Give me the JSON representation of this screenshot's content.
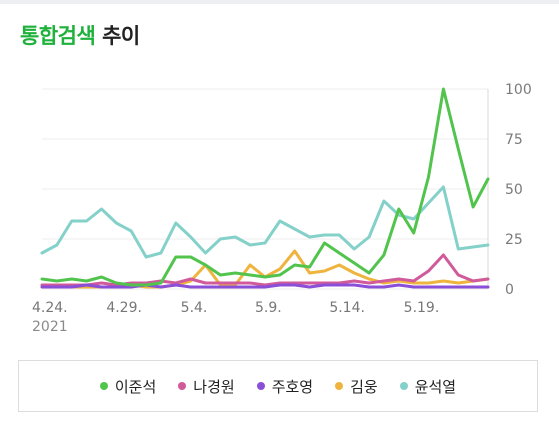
{
  "header": {
    "title_accent": "통합검색",
    "title_rest": "추이"
  },
  "chart_data": {
    "type": "line",
    "title": "통합검색 추이",
    "xlabel": "",
    "ylabel": "",
    "ylim": [
      0,
      100
    ],
    "yticks": [
      "0",
      "25",
      "50",
      "75",
      "100"
    ],
    "xticks": [
      "4.24.",
      "4.29.",
      "5.4.",
      "5.9.",
      "5.14.",
      "5.19."
    ],
    "year_label": "2021",
    "grid": true,
    "legend_position": "bottom",
    "x": [
      "4.24.",
      "4.25.",
      "4.26.",
      "4.27.",
      "4.28.",
      "4.29.",
      "4.30.",
      "5.1.",
      "5.2.",
      "5.3.",
      "5.4.",
      "5.5.",
      "5.6.",
      "5.7.",
      "5.8.",
      "5.9.",
      "5.10.",
      "5.11.",
      "5.12.",
      "5.13.",
      "5.14.",
      "5.15.",
      "5.16.",
      "5.17.",
      "5.18.",
      "5.19.",
      "5.20.",
      "5.21.",
      "5.22.",
      "5.23.",
      "5.24."
    ],
    "series": [
      {
        "name": "이준석",
        "color": "#52c44e",
        "values": [
          5,
          4,
          5,
          4,
          6,
          3,
          2,
          2,
          3,
          16,
          16,
          12,
          7,
          8,
          7,
          6,
          7,
          12,
          11,
          23,
          18,
          13,
          8,
          17,
          40,
          28,
          56,
          100,
          70,
          41,
          55
        ]
      },
      {
        "name": "나경원",
        "color": "#d05a9a",
        "values": [
          2,
          2,
          2,
          2,
          3,
          2,
          3,
          3,
          4,
          3,
          5,
          3,
          3,
          3,
          3,
          2,
          3,
          3,
          3,
          3,
          3,
          4,
          3,
          4,
          5,
          4,
          9,
          17,
          7,
          4,
          5
        ]
      },
      {
        "name": "주호영",
        "color": "#8a4fd8",
        "values": [
          1,
          1,
          1,
          2,
          1,
          1,
          1,
          2,
          1,
          2,
          1,
          1,
          1,
          1,
          1,
          1,
          2,
          2,
          1,
          2,
          2,
          2,
          1,
          1,
          2,
          1,
          1,
          1,
          1,
          1,
          1
        ]
      },
      {
        "name": "김웅",
        "color": "#efb43e",
        "values": [
          1,
          1,
          1,
          1,
          1,
          1,
          2,
          1,
          1,
          2,
          4,
          12,
          2,
          2,
          12,
          6,
          10,
          19,
          8,
          9,
          12,
          8,
          5,
          3,
          4,
          3,
          3,
          4,
          3,
          4,
          5
        ]
      },
      {
        "name": "윤석열",
        "color": "#84d1c9",
        "values": [
          18,
          22,
          34,
          34,
          40,
          33,
          29,
          16,
          18,
          33,
          26,
          18,
          25,
          26,
          22,
          23,
          34,
          30,
          26,
          27,
          27,
          20,
          26,
          44,
          37,
          35,
          43,
          51,
          20,
          21,
          22
        ]
      }
    ]
  }
}
